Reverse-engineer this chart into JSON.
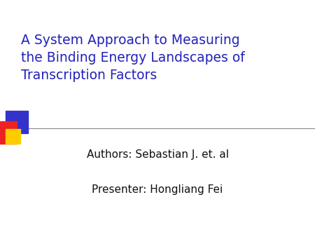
{
  "title_line1": "A System Approach to Measuring",
  "title_line2": "the Binding Energy Landscapes of",
  "title_line3": "Transcription Factors",
  "authors_line": "Authors: Sebastian J. et. al",
  "presenter_line": "Presenter: Hongliang Fei",
  "title_color": "#2222bb",
  "body_color": "#111111",
  "background_color": "#ffffff",
  "title_fontsize": 13.5,
  "body_fontsize": 11,
  "square_blue": "#3333cc",
  "square_red": "#ee2222",
  "square_yellow": "#ffcc00"
}
